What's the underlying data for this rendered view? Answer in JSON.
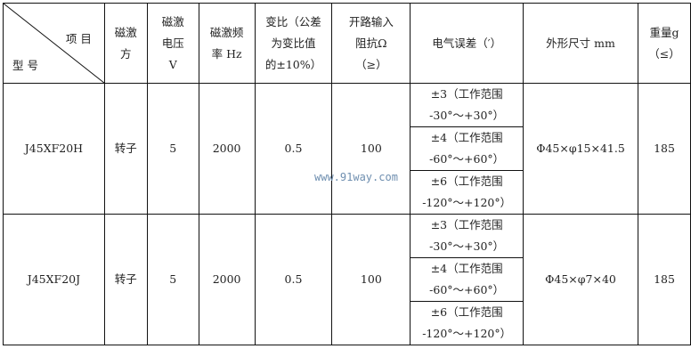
{
  "header": {
    "corner_top": "项 目",
    "corner_bottom": "型 号",
    "excitation": [
      "磁激",
      "方"
    ],
    "voltage": [
      "磁激",
      "电压",
      "V"
    ],
    "frequency": [
      "磁激频",
      "率 Hz"
    ],
    "ratio": [
      "变比（公差",
      "为变比值",
      "的±10%）"
    ],
    "impedance": [
      "开路输入",
      "阻抗Ω",
      "（≥）"
    ],
    "error": "电气误差（′）",
    "dimensions": "外形尺寸 mm",
    "weight": [
      "重量g",
      "（≤）"
    ]
  },
  "rows": [
    {
      "model": "J45XF20H",
      "excitation": "转子",
      "voltage": "5",
      "frequency": "2000",
      "ratio": "0.5",
      "impedance": "100",
      "errors": [
        [
          "±3（工作范围",
          "-30°～+30°）"
        ],
        [
          "±4（工作范围",
          "-60°～+60°）"
        ],
        [
          "±6（工作范围",
          "-120°～+120°）"
        ]
      ],
      "dimensions": "Φ45×φ15×41.5",
      "weight": "185"
    },
    {
      "model": "J45XF20J",
      "excitation": "转子",
      "voltage": "5",
      "frequency": "2000",
      "ratio": "0.5",
      "impedance": "100",
      "errors": [
        [
          "±3（工作范围",
          "-30°～+30°）"
        ],
        [
          "±4（工作范围",
          "-60°～+60°）"
        ],
        [
          "±6（工作范围",
          "-120°～+120°）"
        ]
      ],
      "dimensions": "Φ45×φ7×40",
      "weight": "185"
    }
  ],
  "watermark": "www.91way.com"
}
